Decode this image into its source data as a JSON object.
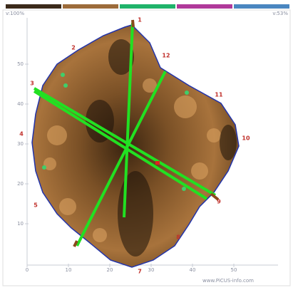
{
  "header": {
    "left_label": "v:100%",
    "right_label": "v:53%"
  },
  "axis": {
    "xticks": [
      0,
      10,
      20,
      30,
      40,
      50
    ],
    "yticks": [
      10,
      20,
      30,
      40,
      50
    ]
  },
  "sensors": [
    "1",
    "2",
    "3",
    "4",
    "5",
    "7",
    "8",
    "9",
    "10",
    "11",
    "12"
  ],
  "footer": "www.PiCUS-info.com"
}
